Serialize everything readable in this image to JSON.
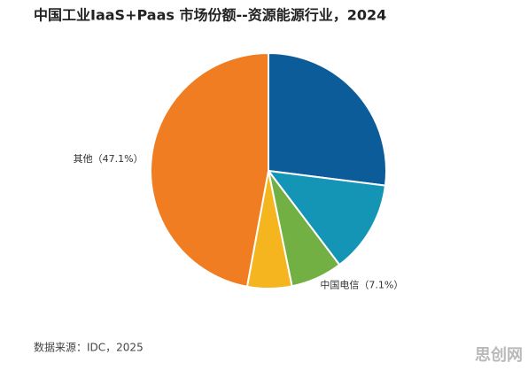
{
  "chart_data": {
    "type": "pie",
    "title": "中国工业IaaS+Paas 市场份额--资源能源行业，2024",
    "categories": [
      null,
      null,
      "中国电信",
      null,
      "其他"
    ],
    "values": [
      27,
      12.7,
      7.1,
      6.1,
      47.1
    ],
    "value_labels": [
      null,
      null,
      "（7.1%）",
      null,
      "（47.1%）"
    ],
    "colors": [
      "#0b5c99",
      "#1495b5",
      "#72b043",
      "#f5b51e",
      "#f07d22"
    ],
    "source": "数据来源：IDC，2025"
  },
  "watermark": "思创网"
}
